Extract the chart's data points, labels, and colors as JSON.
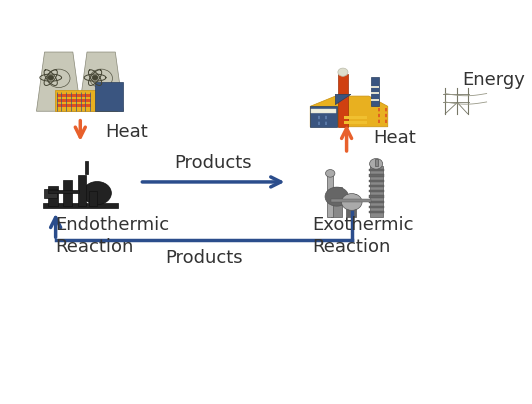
{
  "bg_color": "#ffffff",
  "arrow_orange": "#E8602C",
  "arrow_blue": "#2B4D8C",
  "text_color": "#333333",
  "labels": {
    "heat_left": "Heat",
    "heat_right": "Heat",
    "products_right": "Products",
    "products_bottom": "Products",
    "endothermic": "Endothermic\nReaction",
    "exothermic": "Exothermic\nReaction",
    "energy": "Energy"
  },
  "label_fontsize": 13,
  "figsize": [
    5.32,
    4.04
  ],
  "dpi": 100
}
